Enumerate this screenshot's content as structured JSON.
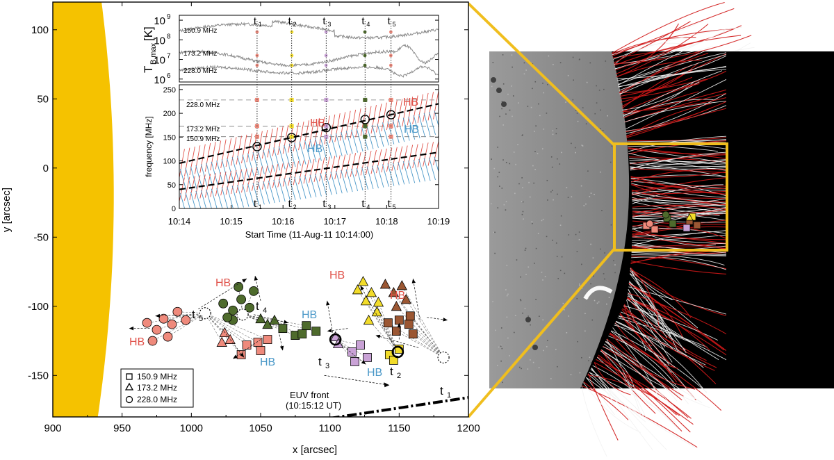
{
  "colors": {
    "sun": "#F5C200",
    "frame": "#F0BE1E",
    "hb_red": "#E0524A",
    "hb_blue": "#4A98C8",
    "grey": "#888888",
    "salmon": "#EF8A7C",
    "olive": "#4E6B2C",
    "lilac": "#C9A2D6",
    "yellow": "#F2DC2A",
    "brown": "#9B5733",
    "black": "#000000"
  },
  "main_plot": {
    "xlabel": "x [arcsec]",
    "ylabel": "y [arcsec]",
    "x_ticks": [
      "900",
      "950",
      "1000",
      "1050",
      "1100",
      "1150",
      "1200"
    ],
    "y_ticks": [
      "100",
      "50",
      "0",
      "-50",
      "-100",
      "-150"
    ],
    "xlim": [
      900,
      1200
    ],
    "ylim": [
      -180,
      120
    ]
  },
  "legend": [
    {
      "shape": "square",
      "label": "150.9 MHz"
    },
    {
      "shape": "triangle",
      "label": "173.2 MHz"
    },
    {
      "shape": "circle",
      "label": "228.0 MHz"
    }
  ],
  "annotations": {
    "hb": "HB",
    "euv_front": "EUV front",
    "euv_time": "(10:15:12 UT)",
    "time_markers": [
      {
        "t": "t",
        "sub": "1"
      },
      {
        "t": "t",
        "sub": "2"
      },
      {
        "t": "t",
        "sub": "3"
      },
      {
        "t": "t",
        "sub": "4"
      },
      {
        "t": "t",
        "sub": "5"
      }
    ]
  },
  "inset_tb": {
    "ylabel": "T",
    "ylabel_sub": "B,max",
    "ylabel_unit": "[K]",
    "y_ticks": [
      {
        "base": "10",
        "exp": "9"
      },
      {
        "base": "10",
        "exp": "8"
      },
      {
        "base": "10",
        "exp": "7"
      },
      {
        "base": "10",
        "exp": "6"
      }
    ],
    "series_labels": [
      "150.9 MHz",
      "173.2 MHz",
      "228.0 MHz"
    ]
  },
  "inset_freq": {
    "ylabel": "frequency [MHz]",
    "xlabel": "Start Time (11-Aug-11 10:14:00)",
    "y_ticks": [
      "250",
      "200",
      "150",
      "100",
      "50",
      "0"
    ],
    "x_ticks": [
      "10:14",
      "10:15",
      "10:16",
      "10:17",
      "10:18",
      "10:19"
    ],
    "ref_labels": [
      "228.0 MHz",
      "173.2 MHz",
      "150.9 MHz"
    ]
  },
  "chart_data": [
    {
      "type": "scatter",
      "title": "",
      "xlabel": "x [arcsec]",
      "ylabel": "y [arcsec]",
      "xlim": [
        900,
        1200
      ],
      "ylim": [
        -180,
        120
      ],
      "grid": false,
      "legend_position": "bottom-left",
      "series": [
        {
          "name": "150.9 MHz",
          "marker": "square",
          "points": [
            {
              "x": 1040,
              "y": -128,
              "group": "t5"
            },
            {
              "x": 1048,
              "y": -126,
              "group": "t5"
            },
            {
              "x": 1055,
              "y": -124,
              "group": "t5"
            },
            {
              "x": 1036,
              "y": -135,
              "group": "t5"
            },
            {
              "x": 1050,
              "y": -132,
              "group": "t5"
            },
            {
              "x": 1066,
              "y": -116,
              "group": "t4"
            },
            {
              "x": 1075,
              "y": -121,
              "group": "t4"
            },
            {
              "x": 1083,
              "y": -114,
              "group": "t4"
            },
            {
              "x": 1090,
              "y": -118,
              "group": "t4"
            },
            {
              "x": 1080,
              "y": -120,
              "group": "t4"
            },
            {
              "x": 1116,
              "y": -133,
              "group": "t3"
            },
            {
              "x": 1122,
              "y": -128,
              "group": "t3"
            },
            {
              "x": 1127,
              "y": -137,
              "group": "t3"
            },
            {
              "x": 1118,
              "y": -140,
              "group": "t3"
            },
            {
              "x": 1143,
              "y": -135,
              "group": "t2"
            },
            {
              "x": 1150,
              "y": -131,
              "group": "t2"
            },
            {
              "x": 1146,
              "y": -139,
              "group": "t2"
            },
            {
              "x": 1142,
              "y": -112,
              "group": "t1"
            },
            {
              "x": 1150,
              "y": -110,
              "group": "t1"
            },
            {
              "x": 1157,
              "y": -113,
              "group": "t1"
            },
            {
              "x": 1148,
              "y": -118,
              "group": "t1"
            },
            {
              "x": 1160,
              "y": -120,
              "group": "t1"
            },
            {
              "x": 1158,
              "y": -107,
              "group": "t1"
            }
          ]
        },
        {
          "name": "173.2 MHz",
          "marker": "triangle",
          "points": [
            {
              "x": 1024,
              "y": -119,
              "group": "t5"
            },
            {
              "x": 1028,
              "y": -124,
              "group": "t5"
            },
            {
              "x": 1022,
              "y": -126,
              "group": "t5"
            },
            {
              "x": 1050,
              "y": -109,
              "group": "t4"
            },
            {
              "x": 1055,
              "y": -113,
              "group": "t4"
            },
            {
              "x": 1060,
              "y": -110,
              "group": "t4"
            },
            {
              "x": 1104,
              "y": -122,
              "group": "t3"
            },
            {
              "x": 1106,
              "y": -127,
              "group": "t3"
            },
            {
              "x": 1124,
              "y": -82,
              "group": "t2"
            },
            {
              "x": 1120,
              "y": -88,
              "group": "t2"
            },
            {
              "x": 1126,
              "y": -96,
              "group": "t2"
            },
            {
              "x": 1130,
              "y": -90,
              "group": "t2"
            },
            {
              "x": 1134,
              "y": -104,
              "group": "t2"
            },
            {
              "x": 1128,
              "y": -110,
              "group": "t2"
            },
            {
              "x": 1135,
              "y": -97,
              "group": "t2"
            },
            {
              "x": 1140,
              "y": -84,
              "group": "t1"
            },
            {
              "x": 1146,
              "y": -90,
              "group": "t1"
            },
            {
              "x": 1152,
              "y": -85,
              "group": "t1"
            },
            {
              "x": 1155,
              "y": -95,
              "group": "t1"
            },
            {
              "x": 1148,
              "y": -100,
              "group": "t1"
            }
          ]
        },
        {
          "name": "228.0 MHz",
          "marker": "circle",
          "points": [
            {
              "x": 968,
              "y": -112,
              "group": "t5"
            },
            {
              "x": 975,
              "y": -117,
              "group": "t5"
            },
            {
              "x": 980,
              "y": -109,
              "group": "t5"
            },
            {
              "x": 986,
              "y": -113,
              "group": "t5"
            },
            {
              "x": 990,
              "y": -104,
              "group": "t5"
            },
            {
              "x": 983,
              "y": -122,
              "group": "t5"
            },
            {
              "x": 996,
              "y": -110,
              "group": "t5"
            },
            {
              "x": 972,
              "y": -125,
              "group": "t5"
            },
            {
              "x": 1023,
              "y": -98,
              "group": "t4"
            },
            {
              "x": 1030,
              "y": -103,
              "group": "t4"
            },
            {
              "x": 1036,
              "y": -95,
              "group": "t4"
            },
            {
              "x": 1042,
              "y": -101,
              "group": "t4"
            },
            {
              "x": 1030,
              "y": -110,
              "group": "t4"
            },
            {
              "x": 1045,
              "y": -89,
              "group": "t4"
            },
            {
              "x": 1034,
              "y": -86,
              "group": "t4"
            },
            {
              "x": 1026,
              "y": -108,
              "group": "t4"
            }
          ]
        },
        {
          "name": "centroid",
          "marker": "circle-open",
          "points": [
            {
              "x": 1104,
              "y": -124
            },
            {
              "x": 1149,
              "y": -133
            }
          ]
        }
      ],
      "euv_front": {
        "label": "EUV front",
        "time": "(10:15:12 UT)",
        "x": [
          1100,
          1200
        ],
        "y": [
          -181,
          -166
        ]
      }
    },
    {
      "type": "line",
      "title": "",
      "ylabel": "T_B,max [K]",
      "y_scale": "log",
      "ylim": [
        1000000,
        1000000000
      ],
      "x_units": "minutes after 10:14",
      "series": [
        {
          "name": "150.9 MHz",
          "approx_level_K": 300000000
        },
        {
          "name": "173.2 MHz",
          "approx_level_K": 12000000
        },
        {
          "name": "228.0 MHz",
          "approx_level_K": 3000000
        }
      ]
    },
    {
      "type": "scatter",
      "title": "",
      "xlabel": "Start Time (11-Aug-11 10:14:00)",
      "ylabel": "frequency [MHz]",
      "xlim": [
        "10:14",
        "10:19"
      ],
      "ylim": [
        0,
        260
      ],
      "reference_lines_MHz": [
        228.0,
        173.2,
        150.9
      ],
      "time_markers": [
        {
          "label": "t1",
          "time": "10:15:30"
        },
        {
          "label": "t2",
          "time": "10:16:10"
        },
        {
          "label": "t3",
          "time": "10:16:50"
        },
        {
          "label": "t4",
          "time": "10:17:35"
        },
        {
          "label": "t5",
          "time": "10:18:05"
        }
      ],
      "drift_fits": [
        {
          "name": "upper band",
          "start": {
            "time": "10:14",
            "freq": 95
          },
          "end": {
            "time": "10:19",
            "freq": 220
          }
        },
        {
          "name": "lower band",
          "start": {
            "time": "10:14",
            "freq": 40
          },
          "end": {
            "time": "10:19",
            "freq": 118
          }
        }
      ],
      "centroids": [
        {
          "time": "10:15:30",
          "freq": 130
        },
        {
          "time": "10:16:10",
          "freq": 149
        },
        {
          "time": "10:16:50",
          "freq": 170
        },
        {
          "time": "10:17:35",
          "freq": 187
        },
        {
          "time": "10:18:05",
          "freq": 197
        }
      ]
    }
  ]
}
